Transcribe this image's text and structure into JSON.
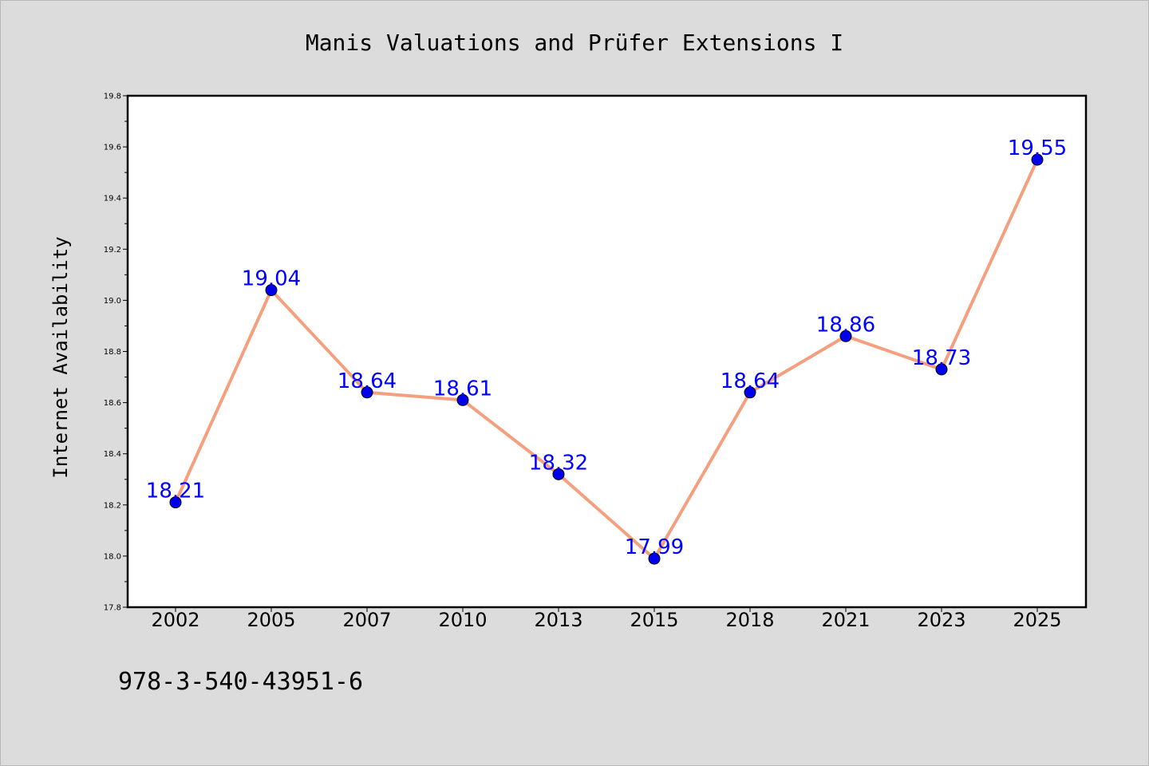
{
  "chart_data": {
    "type": "line",
    "title": "Manis Valuations and Prüfer Extensions I",
    "xlabel": "",
    "ylabel": "Internet Availability",
    "categories": [
      "2002",
      "2005",
      "2007",
      "2010",
      "2013",
      "2015",
      "2018",
      "2021",
      "2023",
      "2025"
    ],
    "values": [
      18.21,
      19.04,
      18.64,
      18.61,
      18.32,
      17.99,
      18.64,
      18.86,
      18.73,
      19.55
    ],
    "data_labels": [
      "18.21",
      "19.04",
      "18.64",
      "18.61",
      "18.32",
      "17.99",
      "18.64",
      "18.86",
      "18.73",
      "19.55"
    ],
    "ylim": [
      17.8,
      19.8
    ],
    "yticks": [
      "17.8",
      "18.0",
      "18.2",
      "18.4",
      "18.6",
      "18.8",
      "19.0",
      "19.2",
      "19.4",
      "19.6",
      "19.8"
    ],
    "grid": false,
    "colors": {
      "line": "#f4a07f",
      "marker": "#0000ee",
      "label": "#0000ff"
    }
  },
  "annotation": {
    "isbn": "978-3-540-43951-6"
  }
}
